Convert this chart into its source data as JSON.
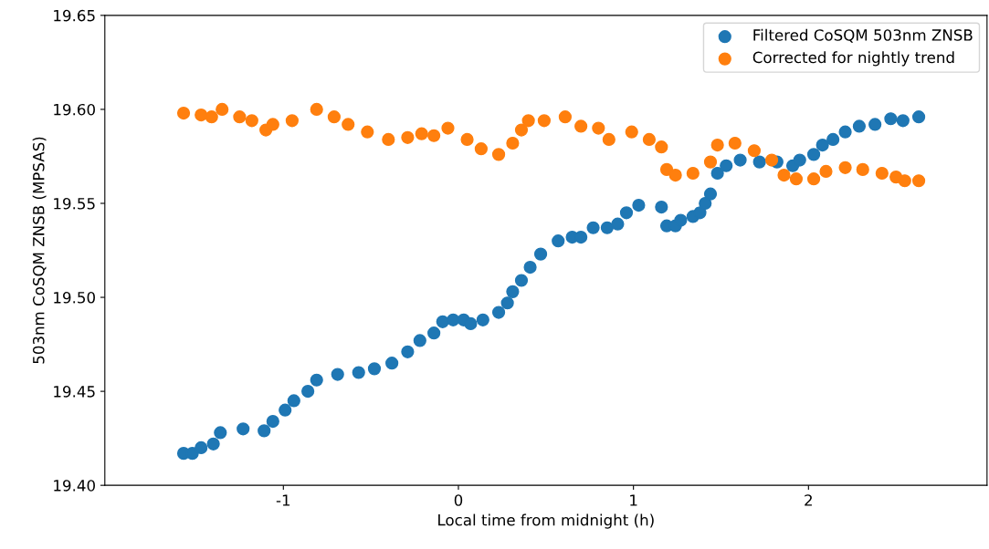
{
  "chart_data": {
    "type": "scatter",
    "xlabel": "Local time from midnight (h)",
    "ylabel": "503nm CoSQM ZNSB (MPSAS)",
    "xlim": [
      -2.02,
      3.02
    ],
    "xticks": [
      -1,
      0,
      1,
      2
    ],
    "ylim": [
      19.4,
      19.65
    ],
    "yticks": [
      {
        "value": 19.4,
        "label": "19.40"
      },
      {
        "value": 19.45,
        "label": "19.45"
      },
      {
        "value": 19.5,
        "label": "19.50"
      },
      {
        "value": 19.55,
        "label": "19.55"
      },
      {
        "value": 19.6,
        "label": "19.60"
      },
      {
        "value": 19.65,
        "label": "19.65"
      }
    ],
    "legend": "top right",
    "marker": "circle",
    "grid": false,
    "series": [
      {
        "name": "Filtered CoSQM 503nm ZNSB",
        "color": "#1f77b4",
        "x": [
          -1.57,
          -1.52,
          -1.47,
          -1.4,
          -1.36,
          -1.23,
          -1.11,
          -1.06,
          -0.99,
          -0.94,
          -0.86,
          -0.81,
          -0.69,
          -0.57,
          -0.48,
          -0.38,
          -0.29,
          -0.22,
          -0.14,
          -0.09,
          -0.03,
          0.03,
          0.07,
          0.14,
          0.23,
          0.28,
          0.31,
          0.36,
          0.41,
          0.47,
          0.57,
          0.65,
          0.7,
          0.77,
          0.85,
          0.91,
          0.96,
          1.03,
          1.16,
          1.19,
          1.24,
          1.27,
          1.34,
          1.38,
          1.41,
          1.44,
          1.48,
          1.53,
          1.61,
          1.72,
          1.82,
          1.91,
          1.95,
          2.03,
          2.08,
          2.14,
          2.21,
          2.29,
          2.38,
          2.47,
          2.54,
          2.63
        ],
        "values": [
          19.417,
          19.417,
          19.42,
          19.422,
          19.428,
          19.43,
          19.429,
          19.434,
          19.44,
          19.445,
          19.45,
          19.456,
          19.459,
          19.46,
          19.462,
          19.465,
          19.471,
          19.477,
          19.481,
          19.487,
          19.488,
          19.488,
          19.486,
          19.488,
          19.492,
          19.497,
          19.503,
          19.509,
          19.516,
          19.523,
          19.53,
          19.532,
          19.532,
          19.537,
          19.537,
          19.539,
          19.545,
          19.549,
          19.548,
          19.538,
          19.538,
          19.541,
          19.543,
          19.545,
          19.55,
          19.555,
          19.566,
          19.57,
          19.573,
          19.572,
          19.572,
          19.57,
          19.573,
          19.576,
          19.581,
          19.584,
          19.588,
          19.591,
          19.592,
          19.595,
          19.594,
          19.596
        ]
      },
      {
        "name": "Corrected for nightly trend",
        "color": "#ff7f0e",
        "x": [
          -1.57,
          -1.47,
          -1.41,
          -1.35,
          -1.25,
          -1.18,
          -1.1,
          -1.06,
          -0.95,
          -0.81,
          -0.71,
          -0.63,
          -0.52,
          -0.4,
          -0.29,
          -0.21,
          -0.14,
          -0.06,
          0.05,
          0.13,
          0.23,
          0.31,
          0.36,
          0.4,
          0.49,
          0.61,
          0.7,
          0.8,
          0.86,
          0.99,
          1.09,
          1.16,
          1.19,
          1.24,
          1.34,
          1.44,
          1.48,
          1.58,
          1.69,
          1.79,
          1.86,
          1.93,
          2.03,
          2.1,
          2.21,
          2.31,
          2.42,
          2.5,
          2.55,
          2.63
        ],
        "values": [
          19.598,
          19.597,
          19.596,
          19.6,
          19.596,
          19.594,
          19.589,
          19.592,
          19.594,
          19.6,
          19.596,
          19.592,
          19.588,
          19.584,
          19.585,
          19.587,
          19.586,
          19.59,
          19.584,
          19.579,
          19.576,
          19.582,
          19.589,
          19.594,
          19.594,
          19.596,
          19.591,
          19.59,
          19.584,
          19.588,
          19.584,
          19.58,
          19.568,
          19.565,
          19.566,
          19.572,
          19.581,
          19.582,
          19.578,
          19.573,
          19.565,
          19.563,
          19.563,
          19.567,
          19.569,
          19.568,
          19.566,
          19.564,
          19.562,
          19.562
        ]
      }
    ]
  }
}
